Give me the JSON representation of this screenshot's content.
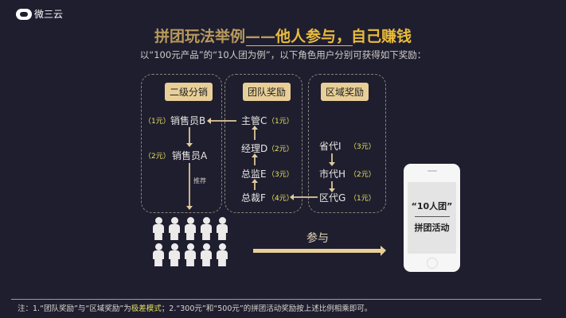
{
  "logo": {
    "text": "微三云"
  },
  "title": {
    "part1": "拼团玩法举例——",
    "part2": "他人参与，自己赚钱"
  },
  "subtitle": "以“100元产品”的“10人团为例”，以下角色用户分别可获得如下奖励：",
  "boxes": [
    {
      "label": "二级分销",
      "items": [
        {
          "name": "销售员B",
          "reward": "（1元）"
        },
        {
          "name": "销售员A",
          "reward": "（2元）"
        }
      ],
      "arrow_note": "推荐"
    },
    {
      "label": "团队奖励",
      "items": [
        {
          "name": "主管C",
          "reward": "（1元）"
        },
        {
          "name": "经理D",
          "reward": "（2元）"
        },
        {
          "name": "总监E",
          "reward": "（3元）"
        },
        {
          "name": "总裁F",
          "reward": "（4元）"
        }
      ]
    },
    {
      "label": "区域奖励",
      "items": [
        {
          "name": "省代Ⅰ",
          "reward": "（3元）"
        },
        {
          "name": "市代H",
          "reward": "（2元）"
        },
        {
          "name": "区代G",
          "reward": "（1元）"
        }
      ]
    }
  ],
  "participate": "参与",
  "phone": {
    "line1": "“10人团”",
    "line2": "拼团活动"
  },
  "footer": {
    "pre": "注：1.“团队奖励”与“区域奖励”为",
    "highlight": "极差模式",
    "post": "；2.“300元”和“500元”的拼团活动奖励按上述比例相乘即可。"
  },
  "colors": {
    "background": "#1f1e2f",
    "gold": "#e9bb3d",
    "label_bg": "#e8cf97",
    "reward": "#e6e25c"
  }
}
